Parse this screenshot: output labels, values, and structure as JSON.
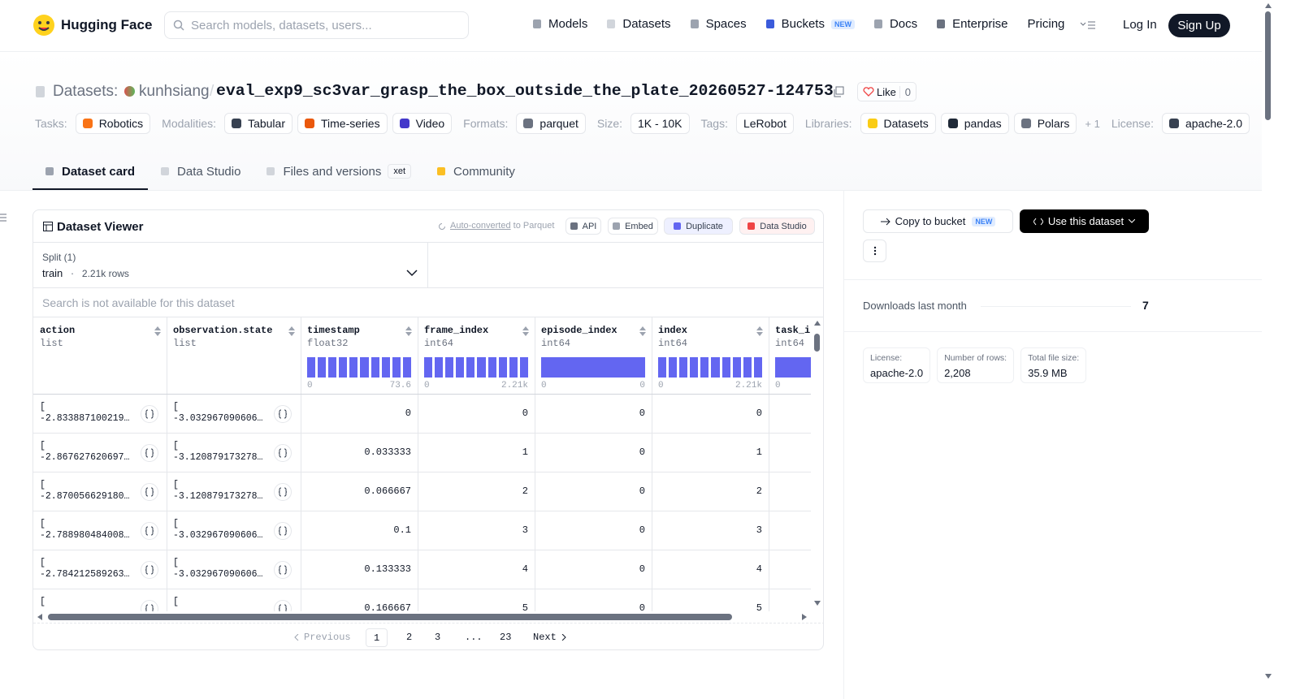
{
  "nav": {
    "brand": "Hugging Face",
    "search_placeholder": "Search models, datasets, users...",
    "links": [
      {
        "label": "Models"
      },
      {
        "label": "Datasets"
      },
      {
        "label": "Spaces"
      },
      {
        "label": "Buckets",
        "badge": "NEW"
      },
      {
        "label": "Docs"
      },
      {
        "label": "Enterprise"
      },
      {
        "label": "Pricing"
      }
    ],
    "login": "Log In",
    "signup": "Sign Up"
  },
  "header": {
    "section": "Datasets:",
    "owner": "kunhsiang",
    "separator": "/",
    "name": "eval_exp9_sc3var_grasp_the_box_outside_the_plate_20260527-124753",
    "like": "Like",
    "like_count": 0,
    "tags": [
      {
        "label": "Tasks:",
        "items": [
          "Robotics"
        ]
      },
      {
        "label": "Modalities:",
        "items": [
          "Tabular",
          "Time-series",
          "Video"
        ]
      },
      {
        "label": "Formats:",
        "items": [
          "parquet"
        ]
      },
      {
        "label": "Size:",
        "items": [
          "1K - 10K"
        ]
      },
      {
        "label": "Tags:",
        "items": [
          "LeRobot"
        ]
      },
      {
        "label": "Libraries:",
        "items": [
          "Datasets",
          "pandas",
          "Polars"
        ],
        "more": "+ 1"
      },
      {
        "label": "License:",
        "items": [
          "apache-2.0"
        ]
      }
    ]
  },
  "tabs": [
    {
      "label": "Dataset card",
      "active": true
    },
    {
      "label": "Data Studio"
    },
    {
      "label": "Files and versions",
      "badge": "xet"
    },
    {
      "label": "Community"
    }
  ],
  "viewer": {
    "title": "Dataset Viewer",
    "auto_converted": "Auto-converted",
    "to_parquet": "to Parquet",
    "buttons": [
      "API",
      "Embed",
      "Duplicate",
      "Data Studio"
    ],
    "split_label": "Split (1)",
    "split": "train",
    "split_rows": "2.21k rows",
    "search": "Search is not available for this dataset",
    "columns": [
      {
        "name": "action",
        "type": "list"
      },
      {
        "name": "observation.state",
        "type": "list"
      },
      {
        "name": "timestamp",
        "type": "float32",
        "min": "0",
        "max": "73.6"
      },
      {
        "name": "frame_index",
        "type": "int64",
        "min": "0",
        "max": "2.21k"
      },
      {
        "name": "episode_index",
        "type": "int64",
        "min": "0",
        "max": "0"
      },
      {
        "name": "index",
        "type": "int64",
        "min": "0",
        "max": "2.21k"
      },
      {
        "name": "task_index",
        "type": "int64",
        "min": "0"
      }
    ],
    "rows": [
      [
        [
          "[",
          "-2.833887100219…"
        ],
        [
          "[",
          "-3.032967090606…"
        ],
        0,
        0,
        0,
        0
      ],
      [
        [
          "[",
          "-2.867627620697…"
        ],
        [
          "[",
          "-3.120879173278…"
        ],
        0.033333,
        1,
        0,
        1
      ],
      [
        [
          "[",
          "-2.870056629180…"
        ],
        [
          "[",
          "-3.120879173278…"
        ],
        0.066667,
        2,
        0,
        2
      ],
      [
        [
          "[",
          "-2.788980484008…"
        ],
        [
          "[",
          "-3.032967090606…"
        ],
        0.1,
        3,
        0,
        3
      ],
      [
        [
          "[",
          "-2.784212589263…"
        ],
        [
          "[",
          "-3.032967090606…"
        ],
        0.133333,
        4,
        0,
        4
      ],
      [
        [
          "["
        ],
        [
          "["
        ],
        0.166667,
        5,
        0,
        5
      ]
    ],
    "pagination": [
      "Previous",
      "1",
      "2",
      "3",
      "...",
      "23",
      "Next"
    ]
  },
  "sidebar": {
    "copy": "Copy to bucket",
    "copy_badge": "NEW",
    "use": "Use this dataset",
    "downloads_label": "Downloads last month",
    "downloads": 7,
    "stats": [
      {
        "label": "License:",
        "value": "apache-2.0"
      },
      {
        "label": "Number of rows:",
        "value": "2,208"
      },
      {
        "label": "Total file size:",
        "value": "35.9 MB"
      }
    ]
  }
}
